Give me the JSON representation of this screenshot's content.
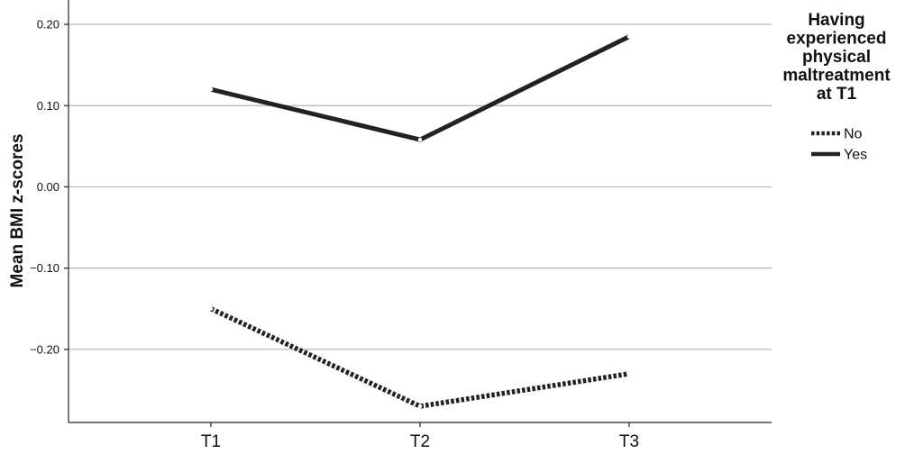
{
  "chart_data": {
    "type": "line",
    "title": "",
    "xlabel": "",
    "ylabel": "Mean BMI z-scores",
    "categories": [
      "T1",
      "T2",
      "T3"
    ],
    "yticks": [
      "0.20",
      "0.10",
      "0.00",
      "−0.10",
      "−0.20"
    ],
    "ylim": [
      -0.29,
      0.23
    ],
    "grid": true,
    "legend": {
      "title_lines": [
        "Having",
        "experienced",
        "physical",
        "maltreatment",
        "at T1"
      ],
      "placement": "right"
    },
    "series": [
      {
        "name": "No",
        "values": [
          -0.15,
          -0.27,
          -0.23
        ],
        "style": "dotted",
        "color": "#222222"
      },
      {
        "name": "Yes",
        "values": [
          0.12,
          0.058,
          0.185
        ],
        "style": "solid",
        "color": "#222222"
      }
    ]
  }
}
